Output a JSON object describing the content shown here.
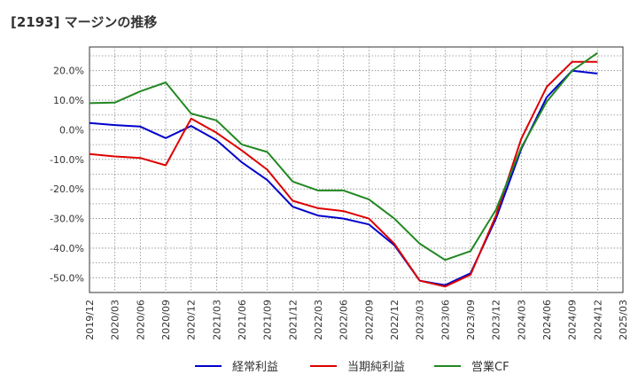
{
  "chart_data": {
    "type": "line",
    "title": "[2193]  マージンの推移",
    "x": [
      "2019/12",
      "2020/03",
      "2020/06",
      "2020/09",
      "2020/12",
      "2021/03",
      "2021/06",
      "2021/09",
      "2021/12",
      "2022/03",
      "2022/06",
      "2022/09",
      "2022/12",
      "2023/03",
      "2023/06",
      "2023/09",
      "2023/12",
      "2024/03",
      "2024/06",
      "2024/09",
      "2024/12",
      "2025/03"
    ],
    "y_ticks": [
      "20.0%",
      "10.0%",
      "0.0%",
      "-10.0%",
      "-20.0%",
      "-30.0%",
      "-40.0%",
      "-50.0%"
    ],
    "y_tick_values": [
      20,
      10,
      0,
      -10,
      -20,
      -30,
      -40,
      -50
    ],
    "ylim": [
      -55,
      28
    ],
    "grid": true,
    "legend_position": "bottom",
    "series": [
      {
        "name": "経常利益",
        "color": "#0000cc",
        "values": [
          2.3,
          1.6,
          1.1,
          -2.8,
          1.3,
          -3.5,
          -11.0,
          -17.0,
          -26.0,
          -29.0,
          -30.0,
          -32.0,
          -39.0,
          -51.0,
          -52.5,
          -48.5,
          -30.0,
          -6.5,
          11.0,
          20.0,
          19.0,
          null
        ]
      },
      {
        "name": "当期純利益",
        "color": "#dd0000",
        "values": [
          -8.2,
          -9.0,
          -9.5,
          -12.0,
          3.8,
          -1.0,
          -7.0,
          -13.5,
          -24.0,
          -26.5,
          -27.5,
          -30.0,
          -38.5,
          -51.0,
          -53.0,
          -49.0,
          -29.0,
          -3.0,
          14.5,
          23.0,
          23.0,
          null
        ]
      },
      {
        "name": "営業CF",
        "color": "#228822",
        "values": [
          9.0,
          9.2,
          13.0,
          16.0,
          5.5,
          3.2,
          -5.0,
          -7.5,
          -17.5,
          -20.5,
          -20.5,
          -23.5,
          -30.0,
          -38.5,
          -44.0,
          -41.0,
          -27.0,
          -6.0,
          9.5,
          20.0,
          26.0,
          null
        ]
      }
    ]
  }
}
